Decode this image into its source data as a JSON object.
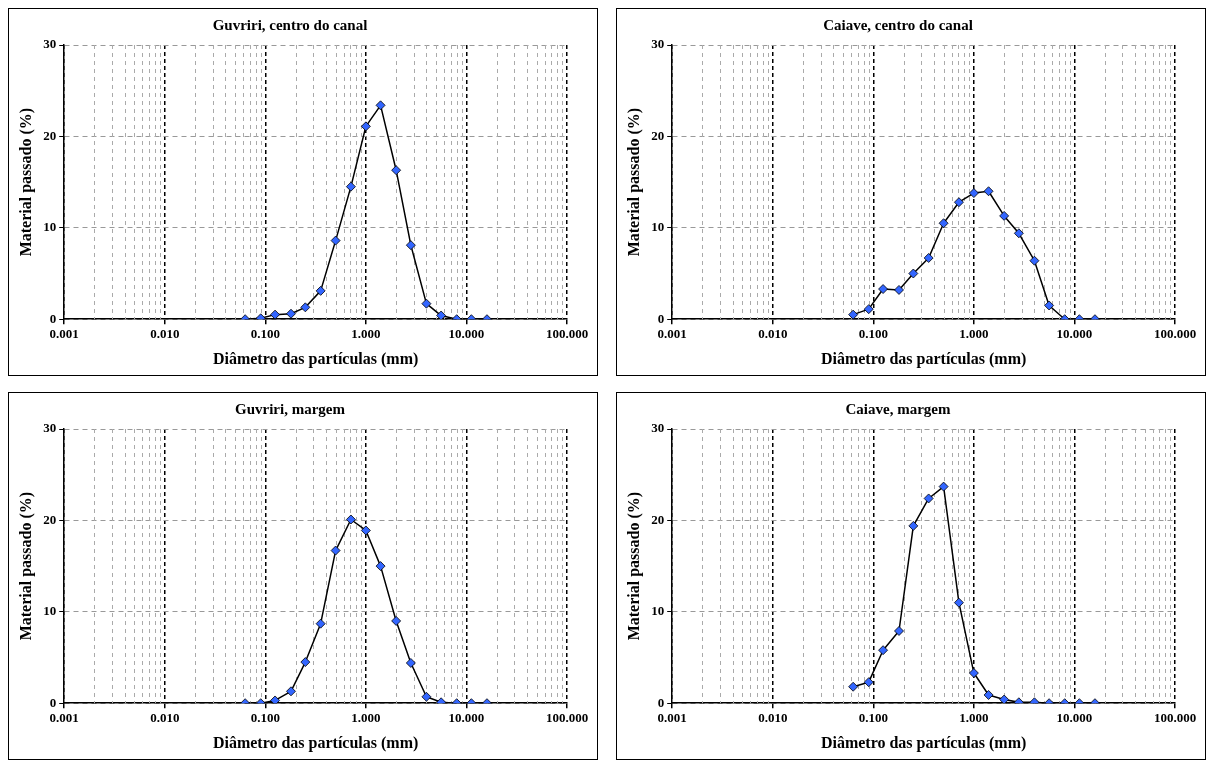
{
  "chart_data": [
    {
      "type": "line",
      "title": "Guvriri, centro do canal",
      "xlabel": "Diâmetro das partículas (mm)",
      "ylabel": "Material passado (%)",
      "log": "x",
      "grid": true,
      "marker": "diamond",
      "line_style": "solid",
      "legend": false,
      "x": [
        0.063,
        0.09,
        0.125,
        0.18,
        0.25,
        0.355,
        0.5,
        0.71,
        1,
        1.4,
        2,
        2.8,
        4,
        5.6,
        8,
        11.2,
        16
      ],
      "series": [
        {
          "color": "#3366ff",
          "values": [
            0,
            0.1,
            0.5,
            0.6,
            1.3,
            3.1,
            8.6,
            14.5,
            21.1,
            23.4,
            16.3,
            8.1,
            1.7,
            0.4,
            0,
            0,
            0
          ]
        }
      ],
      "xlim": [
        0.001,
        100
      ],
      "xticks": [
        {
          "value": 0.001,
          "label": "0.001"
        },
        {
          "value": 0.01,
          "label": "0.010"
        },
        {
          "value": 0.1,
          "label": "0.100"
        },
        {
          "value": 1,
          "label": "1.000"
        },
        {
          "value": 10,
          "label": "10.000"
        },
        {
          "value": 100,
          "label": "100.000"
        }
      ],
      "ylim": [
        0,
        30
      ],
      "yticks": [
        0,
        10,
        20,
        30
      ]
    },
    {
      "type": "line",
      "title": "Caiave, centro do canal",
      "xlabel": "Diâmetro das partículas (mm)",
      "ylabel": "Material passado (%)",
      "log": "x",
      "grid": true,
      "marker": "diamond",
      "line_style": "solid",
      "legend": false,
      "x": [
        0.063,
        0.09,
        0.125,
        0.18,
        0.25,
        0.355,
        0.5,
        0.71,
        1,
        1.4,
        2,
        2.8,
        4,
        5.6,
        8,
        11.2,
        16
      ],
      "series": [
        {
          "color": "#3366ff",
          "values": [
            0.5,
            1.1,
            3.3,
            3.2,
            5.0,
            6.7,
            10.5,
            12.8,
            13.8,
            14.0,
            11.3,
            9.4,
            6.4,
            1.5,
            0,
            0,
            0
          ]
        }
      ],
      "xlim": [
        0.001,
        100
      ],
      "xticks": [
        {
          "value": 0.001,
          "label": "0.001"
        },
        {
          "value": 0.01,
          "label": "0.010"
        },
        {
          "value": 0.1,
          "label": "0.100"
        },
        {
          "value": 1,
          "label": "1.000"
        },
        {
          "value": 10,
          "label": "10.000"
        },
        {
          "value": 100,
          "label": "100.000"
        }
      ],
      "ylim": [
        0,
        30
      ],
      "yticks": [
        0,
        10,
        20,
        30
      ]
    },
    {
      "type": "line",
      "title": "Guvriri, margem",
      "xlabel": "Diâmetro das partículas (mm)",
      "ylabel": "Material passado (%)",
      "log": "x",
      "grid": true,
      "marker": "diamond",
      "line_style": "solid",
      "legend": false,
      "x": [
        0.063,
        0.09,
        0.125,
        0.18,
        0.25,
        0.355,
        0.5,
        0.71,
        1,
        1.4,
        2,
        2.8,
        4,
        5.6,
        8,
        11.2,
        16
      ],
      "series": [
        {
          "color": "#3366ff",
          "values": [
            0,
            0,
            0.3,
            1.3,
            4.5,
            8.7,
            16.7,
            20.1,
            18.9,
            15.0,
            9.0,
            4.4,
            0.7,
            0.1,
            0,
            0,
            0
          ]
        }
      ],
      "xlim": [
        0.001,
        100
      ],
      "xticks": [
        {
          "value": 0.001,
          "label": "0.001"
        },
        {
          "value": 0.01,
          "label": "0.010"
        },
        {
          "value": 0.1,
          "label": "0.100"
        },
        {
          "value": 1,
          "label": "1.000"
        },
        {
          "value": 10,
          "label": "10.000"
        },
        {
          "value": 100,
          "label": "100.000"
        }
      ],
      "ylim": [
        0,
        30
      ],
      "yticks": [
        0,
        10,
        20,
        30
      ]
    },
    {
      "type": "line",
      "title": "Caiave, margem",
      "xlabel": "Diâmetro das partículas (mm)",
      "ylabel": "Material passado (%)",
      "log": "x",
      "grid": true,
      "marker": "diamond",
      "line_style": "solid",
      "legend": false,
      "x": [
        0.063,
        0.09,
        0.125,
        0.18,
        0.25,
        0.355,
        0.5,
        0.71,
        1,
        1.4,
        2,
        2.8,
        4,
        5.6,
        8,
        11.2,
        16
      ],
      "series": [
        {
          "color": "#3366ff",
          "values": [
            1.8,
            2.3,
            5.8,
            7.9,
            19.4,
            22.4,
            23.7,
            11.0,
            3.3,
            0.9,
            0.4,
            0.1,
            0.1,
            0,
            0,
            0,
            0
          ]
        }
      ],
      "xlim": [
        0.001,
        100
      ],
      "xticks": [
        {
          "value": 0.001,
          "label": "0.001"
        },
        {
          "value": 0.01,
          "label": "0.010"
        },
        {
          "value": 0.1,
          "label": "0.100"
        },
        {
          "value": 1,
          "label": "1.000"
        },
        {
          "value": 10,
          "label": "10.000"
        },
        {
          "value": 100,
          "label": "100.000"
        }
      ],
      "ylim": [
        0,
        30
      ],
      "yticks": [
        0,
        10,
        20,
        30
      ]
    }
  ]
}
